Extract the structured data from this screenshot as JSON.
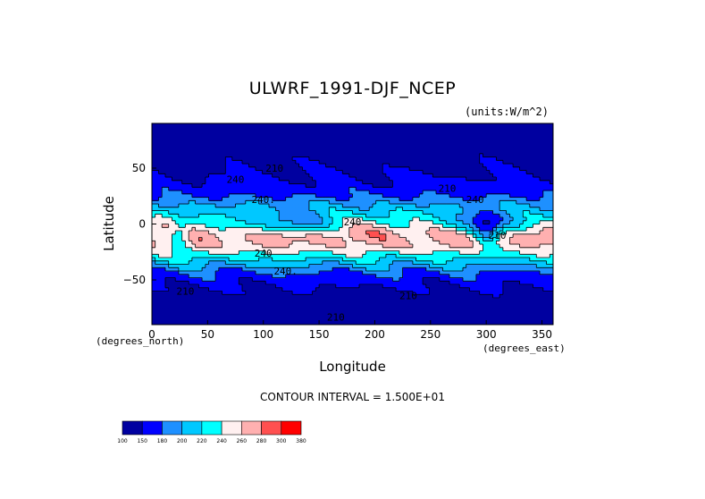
{
  "chart_data": {
    "type": "heatmap",
    "title": "ULWRF_1991-DJF_NCEP",
    "units_note": "(units:W/m^2)",
    "xlabel": "Longitude",
    "ylabel": "Latitude",
    "x_unit": "(degrees_east)",
    "y_unit": "(degrees_north)",
    "xlim": [
      0,
      360
    ],
    "ylim": [
      -90,
      90
    ],
    "x_ticks": [
      0,
      50,
      100,
      150,
      200,
      250,
      300,
      350
    ],
    "y_ticks": [
      -50,
      0,
      50
    ],
    "contour_interval": "CONTOUR INTERVAL = 1.500E+01",
    "contour_labels": [
      "240",
      "210",
      "240.",
      "210",
      "240",
      "240",
      "210",
      "240",
      "240.",
      "210",
      "210",
      "210"
    ],
    "colorbar": {
      "ticks": [
        "100",
        "150",
        "180",
        "200",
        "220",
        "240",
        "260",
        "280",
        "300",
        "380"
      ],
      "colors": [
        "#0000a0",
        "#0000ff",
        "#1e90ff",
        "#00c8ff",
        "#00ffff",
        "#fff0f0",
        "#ffb0b0",
        "#ff5050",
        "#ff0000"
      ]
    }
  }
}
